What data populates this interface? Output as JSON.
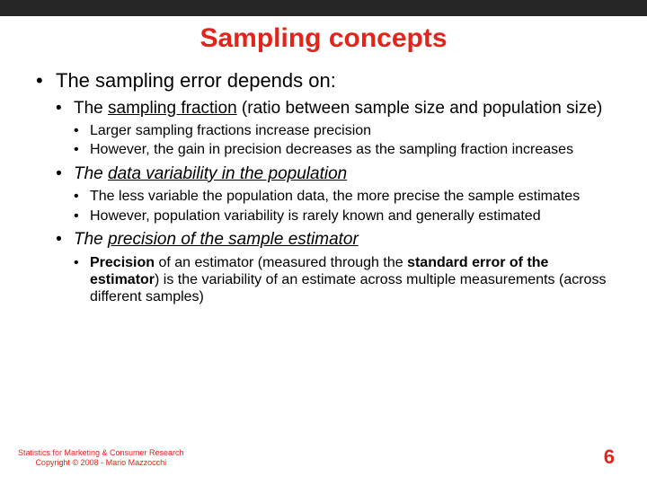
{
  "colors": {
    "topbar": "#262626",
    "title": "#e3241b",
    "body_text": "#000000",
    "footer": "#e3241b",
    "pagenum": "#e3241b",
    "background": "#ffffff"
  },
  "typography": {
    "family": "Trebuchet MS",
    "title_size_pt": 30,
    "lvl1_size_pt": 22,
    "lvl2_size_pt": 19,
    "lvl3_size_pt": 16,
    "footer_size_pt": 9,
    "pagenum_size_pt": 22
  },
  "title": "Sampling concepts",
  "lvl1_intro": "The sampling error depends on:",
  "sampling_fraction": {
    "heading_pre": "The ",
    "heading_term": "sampling fraction",
    "heading_post": " (ratio between sample size and population size)",
    "sub1": "Larger sampling fractions increase precision",
    "sub2": "However, the gain in precision decreases as the sampling fraction increases"
  },
  "data_variability": {
    "heading_pre": "The ",
    "heading_term": "data variability in the population",
    "sub1": "The less variable the population data, the more precise the sample estimates",
    "sub2": "However, population variability is rarely known and generally estimated"
  },
  "precision": {
    "heading_pre": "The ",
    "heading_term": "precision of the sample estimator",
    "sub_bold1": "Precision",
    "sub_mid1": " of an estimator (measured through the ",
    "sub_bold2": "standard error of the estimator",
    "sub_post": ") is the variability of an estimate across multiple measurements (across different samples)"
  },
  "footer_line1": "Statistics for Marketing & Consumer Research",
  "footer_line2": "Copyright © 2008 - Mario Mazzocchi",
  "page_number": "6"
}
